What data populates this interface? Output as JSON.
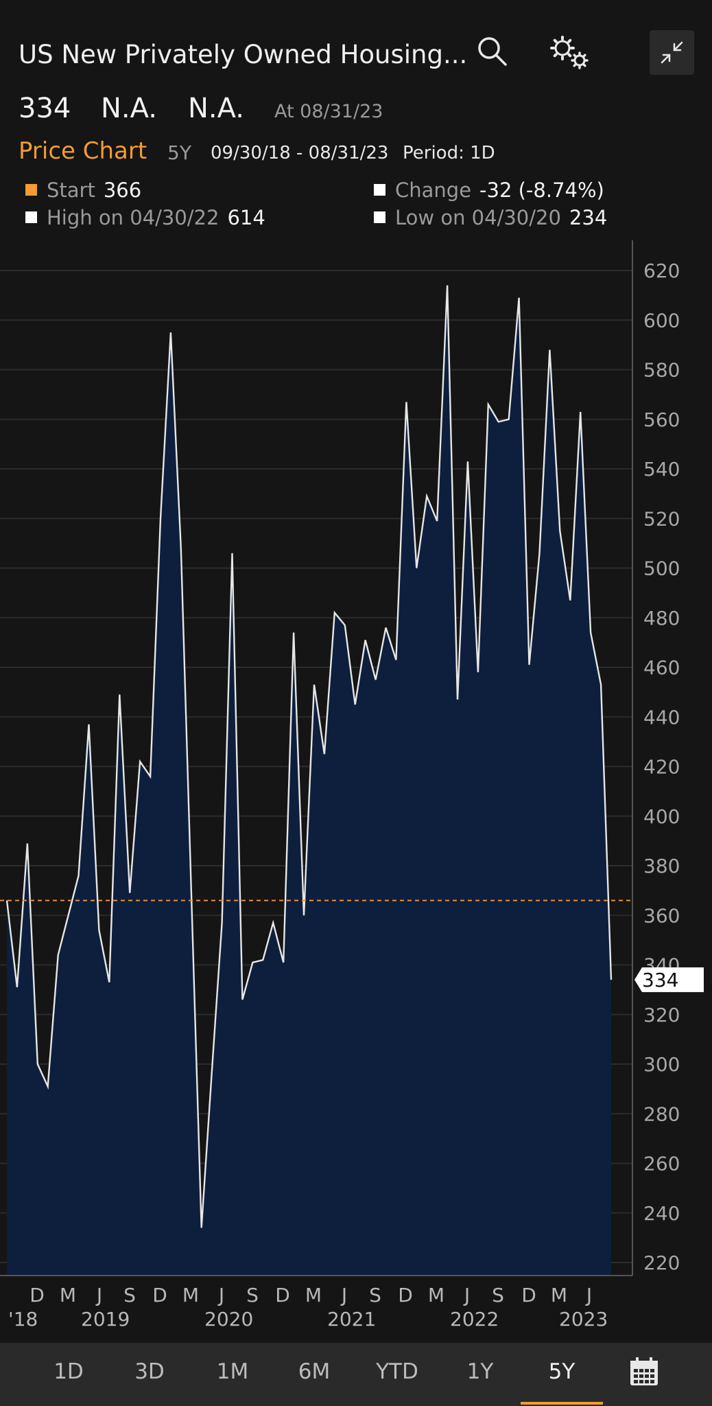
{
  "header": {
    "title": "US New Privately Owned Housing...",
    "icons": {
      "search": "search-icon",
      "settings": "gear-icon",
      "collapse": "collapse-icon"
    }
  },
  "quote": {
    "last": "334",
    "change": "N.A.",
    "pct_change": "N.A.",
    "as_of": "At 08/31/23"
  },
  "price_chart": {
    "title": "Price Chart",
    "range": "5Y",
    "date_range": "09/30/18 - 08/31/23",
    "period": "Period: 1D"
  },
  "legend": {
    "start_label": "Start",
    "start_value": "366",
    "change_label": "Change",
    "change_value": "-32 (-8.74%)",
    "high_label": "High on 04/30/22",
    "high_value": "614",
    "low_label": "Low on 04/30/20",
    "low_value": "234",
    "colors": {
      "start": "#f39c32",
      "other": "#ffffff"
    }
  },
  "chart_data": {
    "type": "area",
    "ylim": [
      215,
      630
    ],
    "yticks": [
      220,
      240,
      260,
      280,
      300,
      320,
      340,
      360,
      380,
      400,
      420,
      440,
      460,
      480,
      500,
      520,
      540,
      560,
      580,
      600,
      620
    ],
    "start_reference": 366,
    "last_value_label": "334",
    "x_month_labels": [
      "D",
      "M",
      "J",
      "S",
      "D",
      "M",
      "J",
      "S",
      "D",
      "M",
      "J",
      "S",
      "D",
      "M",
      "J",
      "S",
      "D",
      "M",
      "J"
    ],
    "x_year_labels": [
      "'18",
      "2019",
      "2020",
      "2021",
      "2022",
      "2023"
    ],
    "colors": {
      "line": "#e6e6e6",
      "fill": "#0e1f3d",
      "reference": "#e8903a",
      "grid": "#2b2b2b"
    },
    "values": [
      366,
      331,
      389,
      300,
      291,
      344,
      360,
      376,
      437,
      354,
      333,
      449,
      369,
      422,
      416,
      520,
      595,
      508,
      370,
      234,
      296,
      357,
      506,
      326,
      341,
      342,
      357,
      341,
      474,
      360,
      453,
      425,
      482,
      477,
      445,
      471,
      455,
      476,
      463,
      567,
      500,
      529,
      519,
      614,
      447,
      543,
      458,
      566,
      559,
      560,
      609,
      461,
      506,
      588,
      515,
      487,
      563,
      474,
      453,
      334
    ]
  },
  "tabs": [
    "1D",
    "3D",
    "1M",
    "6M",
    "YTD",
    "1Y",
    "5Y"
  ],
  "active_tab": "5Y",
  "calendar_icon": "calendar-icon"
}
